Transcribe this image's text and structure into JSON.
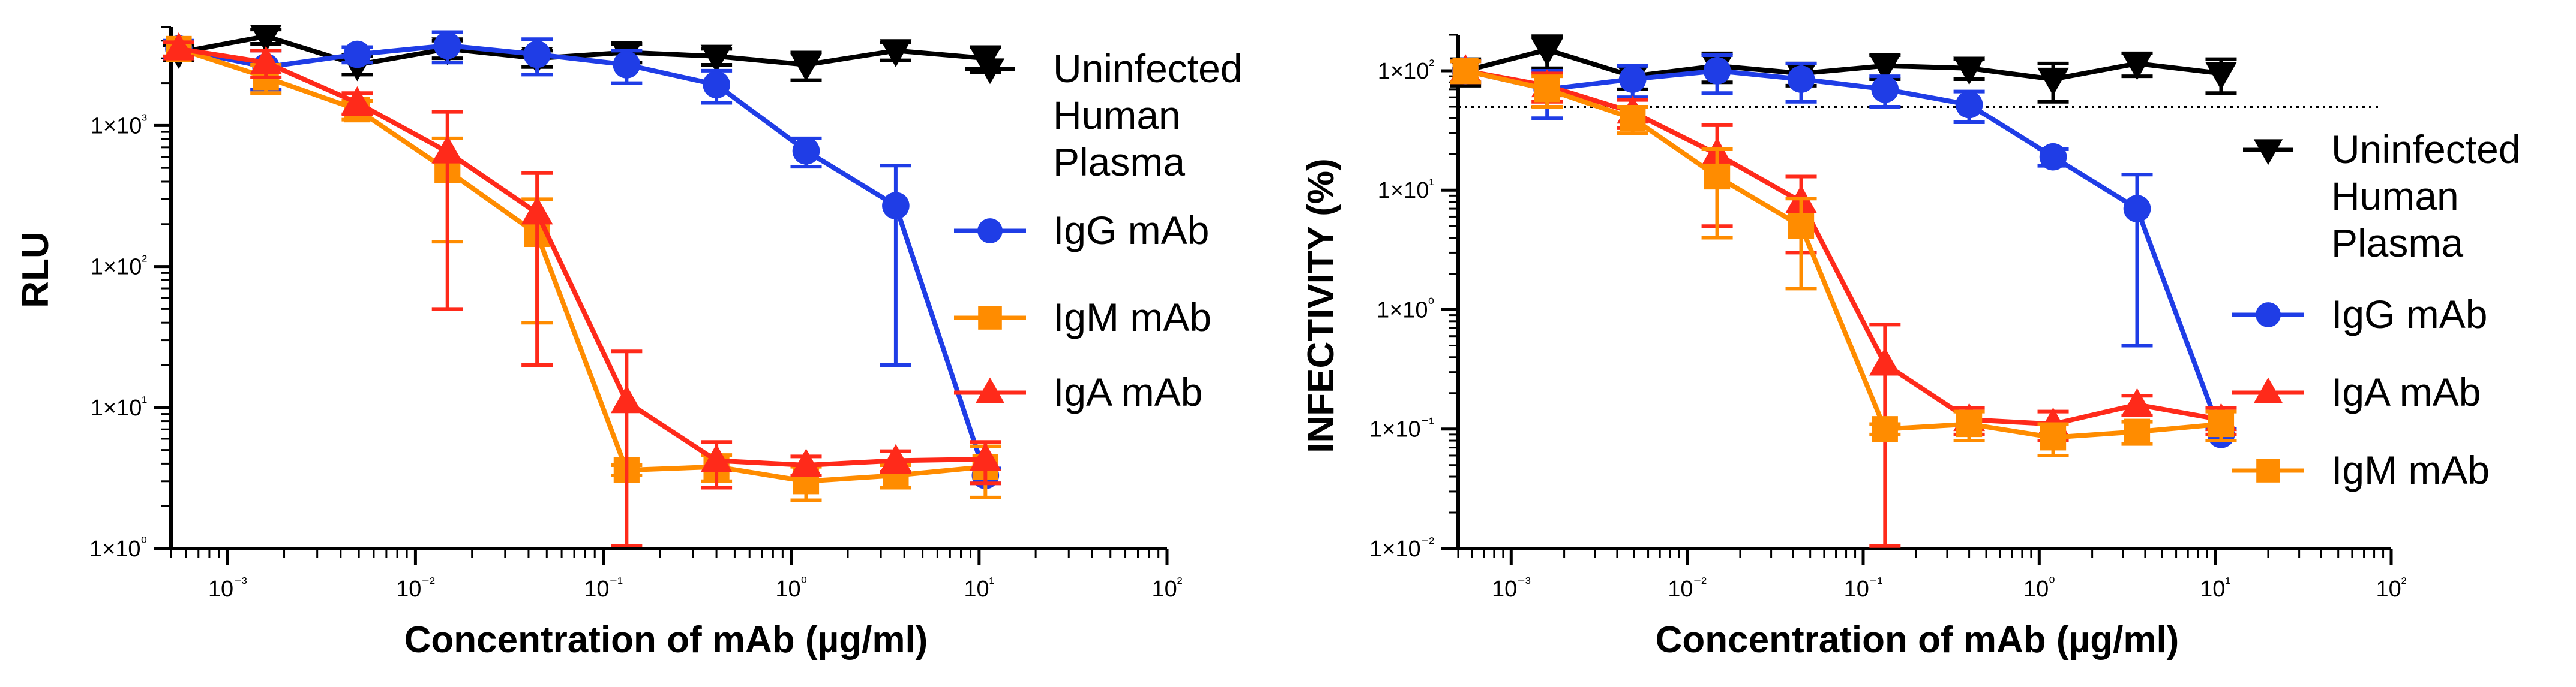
{
  "chart_data": [
    {
      "type": "line",
      "xscale": "log",
      "yscale": "log",
      "xlabel": "Concentration of mAb (µg/ml)",
      "ylabel": "RLU",
      "xlim": [
        0.0005,
        100
      ],
      "ylim": [
        1,
        5000
      ],
      "xticks": [
        "10⁻³",
        "10⁻²",
        "10⁻¹",
        "10⁰",
        "10¹",
        "10²"
      ],
      "yticks": [
        "1×10⁰",
        "1×10¹",
        "1×10²",
        "1×10³"
      ],
      "x": [
        0.00055,
        0.0016,
        0.0049,
        0.0148,
        0.0444,
        0.133,
        0.4,
        1.2,
        3.6,
        10.8
      ],
      "series": [
        {
          "name": "Uninfected Human Plasma",
          "marker": "triangle-down",
          "color": "#000000",
          "values": [
            3300,
            4300,
            2700,
            3500,
            3000,
            3300,
            3100,
            2700,
            3400,
            3000
          ],
          "err": [
            400,
            500,
            400,
            500,
            400,
            500,
            400,
            600,
            500,
            600
          ]
        },
        {
          "name": "IgG mAb",
          "marker": "circle",
          "color": "#1f3de6",
          "values": [
            3500,
            2600,
            3200,
            3700,
            3200,
            2700,
            1950,
            660,
            270,
            3.3
          ],
          "err": [
            500,
            800,
            400,
            900,
            900,
            700,
            500,
            150,
            250,
            0.4
          ]
        },
        {
          "name": "IgM mAb",
          "marker": "square",
          "color": "#ff8c00",
          "values": [
            3500,
            2200,
            1300,
            480,
            170,
            3.6,
            3.8,
            3.0,
            3.3,
            3.8
          ],
          "err": [
            400,
            500,
            200,
            330,
            130,
            0.3,
            0.8,
            0.8,
            0.6,
            1.5
          ]
        },
        {
          "name": "IgA mAb",
          "marker": "triangle-up",
          "color": "#ff2a1a",
          "values": [
            3500,
            2800,
            1450,
            650,
            240,
            11,
            4.2,
            3.9,
            4.2,
            4.3
          ],
          "err": [
            400,
            600,
            250,
            600,
            220,
            14,
            1.5,
            0.6,
            0.7,
            1.4
          ]
        }
      ],
      "legend_order": [
        "Uninfected Human Plasma",
        "IgG mAb",
        "IgM mAb",
        "IgA mAb"
      ],
      "legend_lines": [
        [
          "Uninfected",
          "Human",
          "Plasma"
        ],
        [
          "IgG mAb"
        ],
        [
          "IgM mAb"
        ],
        [
          "IgA mAb"
        ]
      ],
      "legend": "right"
    },
    {
      "type": "line",
      "xscale": "log",
      "yscale": "log",
      "xlabel": "Concentration of mAb (µg/ml)",
      "ylabel": "INFECTIVITY (%)",
      "xlim": [
        0.0005,
        100
      ],
      "ylim": [
        0.01,
        200
      ],
      "xticks": [
        "10⁻³",
        "10⁻²",
        "10⁻¹",
        "10⁰",
        "10¹",
        "10²"
      ],
      "yticks": [
        "1×10⁻²",
        "1×10⁻¹",
        "1×10⁰",
        "1×10¹",
        "1×10²"
      ],
      "reference_line": {
        "y": 50,
        "style": "dotted"
      },
      "x": [
        0.00055,
        0.0016,
        0.0049,
        0.0148,
        0.0444,
        0.133,
        0.4,
        1.2,
        3.6,
        10.8
      ],
      "series": [
        {
          "name": "Uninfected Human Plasma",
          "marker": "triangle-down",
          "color": "#000000",
          "values": [
            100,
            150,
            90,
            110,
            95,
            110,
            105,
            85,
            115,
            95
          ],
          "err": [
            25,
            45,
            20,
            30,
            20,
            25,
            20,
            30,
            25,
            30
          ]
        },
        {
          "name": "IgG mAb",
          "marker": "circle",
          "color": "#1f3de6",
          "values": [
            100,
            70,
            85,
            100,
            85,
            70,
            52,
            19,
            7,
            0.09
          ],
          "err": [
            20,
            30,
            25,
            35,
            30,
            20,
            15,
            3,
            6.5,
            0.01
          ]
        },
        {
          "name": "IgA mAb",
          "marker": "triangle-up",
          "color": "#ff2a1a",
          "values": [
            100,
            75,
            45,
            20,
            8,
            0.35,
            0.12,
            0.11,
            0.16,
            0.12
          ],
          "err": [
            20,
            20,
            12,
            15,
            5,
            0.4,
            0.03,
            0.03,
            0.03,
            0.03
          ]
        },
        {
          "name": "IgM mAb",
          "marker": "square",
          "color": "#ff8c00",
          "values": [
            100,
            70,
            40,
            13,
            5,
            0.1,
            0.11,
            0.085,
            0.095,
            0.11
          ],
          "err": [
            20,
            20,
            10,
            9,
            3.5,
            0.01,
            0.03,
            0.025,
            0.02,
            0.03
          ]
        }
      ],
      "legend_order": [
        "Uninfected Human Plasma",
        "IgG mAb",
        "IgA mAb",
        "IgM mAb"
      ],
      "legend_lines": [
        [
          "Uninfected",
          "Human",
          "Plasma"
        ],
        [
          "IgG mAb"
        ],
        [
          "IgA mAb"
        ],
        [
          "IgM mAb"
        ]
      ],
      "legend": "right"
    }
  ]
}
